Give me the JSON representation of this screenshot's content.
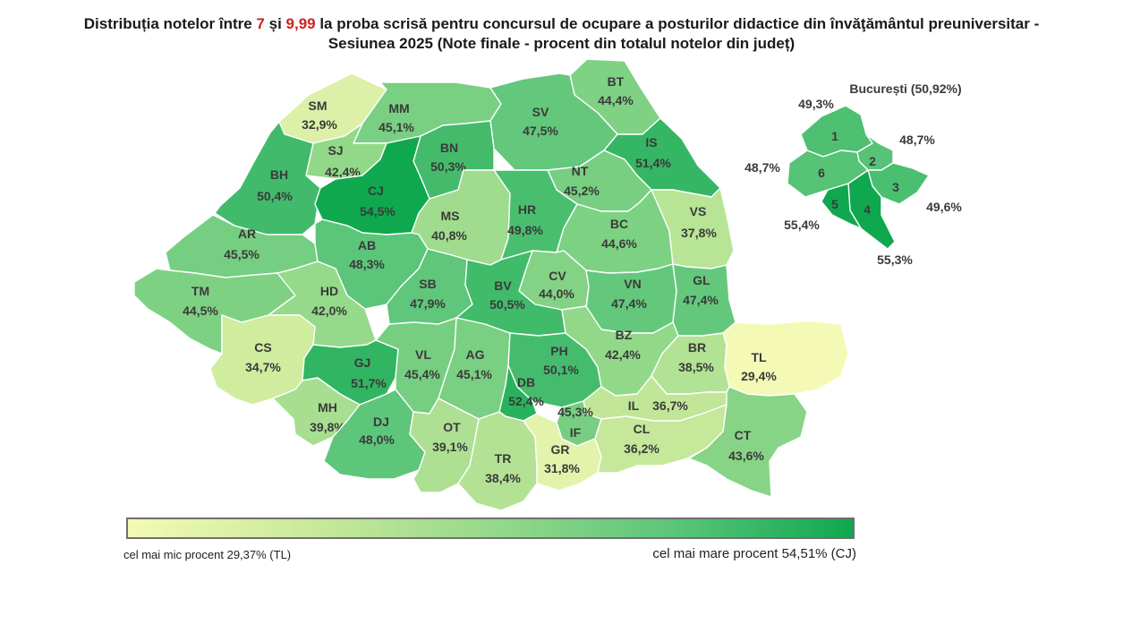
{
  "title": {
    "part1": "Distribuția notelor între ",
    "n1": "7",
    "part2": " și ",
    "n2": "9,99",
    "part3": " la proba scrisă pentru concursul de ocupare a posturilor didactice din învăţământul preuniversitar -",
    "line2": "Sesiunea 2025 (Note finale - procent din totalul notelor din județ)"
  },
  "accent_red": "#d11f1f",
  "counties": [
    {
      "code": "SM",
      "value": "32,9%"
    },
    {
      "code": "MM",
      "value": "45,1%"
    },
    {
      "code": "BT",
      "value": "44,4%"
    },
    {
      "code": "SV",
      "value": "47,5%"
    },
    {
      "code": "IS",
      "value": "51,4%"
    },
    {
      "code": "BN",
      "value": "50,3%"
    },
    {
      "code": "SJ",
      "value": "42,4%"
    },
    {
      "code": "BH",
      "value": "50,4%"
    },
    {
      "code": "CJ",
      "value": "54,5%"
    },
    {
      "code": "NT",
      "value": "45,2%"
    },
    {
      "code": "MS",
      "value": "40,8%"
    },
    {
      "code": "HR",
      "value": "49,8%"
    },
    {
      "code": "BC",
      "value": "44,6%"
    },
    {
      "code": "VS",
      "value": "37,8%"
    },
    {
      "code": "AR",
      "value": "45,5%"
    },
    {
      "code": "AB",
      "value": "48,3%"
    },
    {
      "code": "CV",
      "value": "44,0%"
    },
    {
      "code": "TM",
      "value": "44,5%"
    },
    {
      "code": "HD",
      "value": "42,0%"
    },
    {
      "code": "SB",
      "value": "47,9%"
    },
    {
      "code": "BV",
      "value": "50,5%"
    },
    {
      "code": "VN",
      "value": "47,4%"
    },
    {
      "code": "GL",
      "value": "47,4%"
    },
    {
      "code": "CS",
      "value": "34,7%"
    },
    {
      "code": "GJ",
      "value": "51,7%"
    },
    {
      "code": "VL",
      "value": "45,4%"
    },
    {
      "code": "AG",
      "value": "45,1%"
    },
    {
      "code": "PH",
      "value": "50,1%"
    },
    {
      "code": "BZ",
      "value": "42,4%"
    },
    {
      "code": "BR",
      "value": "38,5%"
    },
    {
      "code": "TL",
      "value": "29,4%"
    },
    {
      "code": "DB",
      "value": "52,4%"
    },
    {
      "code": "MH",
      "value": "39,8%"
    },
    {
      "code": "IL",
      "value": "36,7%"
    },
    {
      "code": "IF",
      "value": "45,3%"
    },
    {
      "code": "DJ",
      "value": "48,0%"
    },
    {
      "code": "OT",
      "value": "39,1%"
    },
    {
      "code": "TR",
      "value": "38,4%"
    },
    {
      "code": "GR",
      "value": "31,8%"
    },
    {
      "code": "CL",
      "value": "36,2%"
    },
    {
      "code": "CT",
      "value": "43,6%"
    }
  ],
  "bucharest": {
    "title": "București (50,92%)",
    "sectors": [
      {
        "label": "1",
        "value": "49,3%"
      },
      {
        "label": "2",
        "value": "48,7%"
      },
      {
        "label": "3",
        "value": "49,6%"
      },
      {
        "label": "4",
        "value": "55,3%"
      },
      {
        "label": "5",
        "value": "55,4%"
      },
      {
        "label": "6",
        "value": "48,7%"
      }
    ]
  },
  "legend": {
    "min_label": "cel mai mic procent 29,37% (TL)",
    "max_label": "cel mai mare procent 54,51% (CJ)",
    "min_color": "#f4fab6",
    "max_color": "#0fa84e"
  }
}
